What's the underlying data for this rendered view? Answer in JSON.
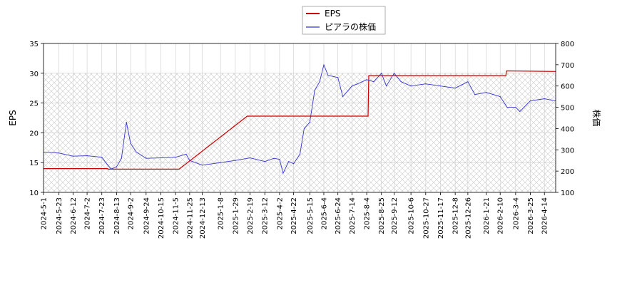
{
  "chart_data": {
    "type": "line",
    "legend": {
      "placement": "top-center",
      "entries": [
        {
          "label": "EPS",
          "color": "#cc0000"
        },
        {
          "label": "ピアラの株価",
          "color": "#3333cc"
        }
      ]
    },
    "ylabel_left": "EPS",
    "ylabel_right": "株価",
    "ylim_left": [
      10,
      35
    ],
    "ylim_right": [
      100,
      800
    ],
    "yticks_left": [
      "10",
      "15",
      "20",
      "25",
      "30",
      "35"
    ],
    "yticks_right": [
      "100",
      "200",
      "300",
      "400",
      "500",
      "600",
      "700",
      "800"
    ],
    "xrange": [
      "2024-05-01",
      "2026-04-30"
    ],
    "xticks": [
      "2024-5-1",
      "2024-5-23",
      "2024-6-12",
      "2024-7-2",
      "2024-7-23",
      "2024-8-13",
      "2024-9-2",
      "2024-9-24",
      "2024-10-15",
      "2024-11-5",
      "2024-11-25",
      "2024-12-13",
      "2025-1-8",
      "2025-1-29",
      "2025-2-19",
      "2025-3-12",
      "2025-4-2",
      "2025-4-22",
      "2025-5-15",
      "2025-6-4",
      "2025-6-24",
      "2025-7-14",
      "2025-8-4",
      "2025-8-25",
      "2025-9-12",
      "2025-10-6",
      "2025-10-27",
      "2025-11-17",
      "2025-12-8",
      "2025-12-26",
      "2026-1-21",
      "2026-2-10",
      "2026-3-4",
      "2026-3-25",
      "2026-4-14"
    ],
    "grid": true,
    "hatched_band": {
      "axis": "left",
      "from": 10,
      "to": 30
    },
    "series": [
      {
        "name": "EPS",
        "axis": "left",
        "color": "#cc0000",
        "x": [
          "2024-05-01",
          "2024-07-31",
          "2024-08-01",
          "2024-11-10",
          "2025-02-15",
          "2025-08-06",
          "2025-08-07",
          "2026-02-18",
          "2026-02-19",
          "2026-04-30"
        ],
        "values": [
          14.0,
          14.0,
          13.9,
          13.9,
          22.8,
          22.8,
          29.6,
          29.6,
          30.4,
          30.3
        ]
      },
      {
        "name": "ピアラの株価",
        "axis": "right",
        "color": "#3333cc",
        "x": [
          "2024-05-01",
          "2024-05-23",
          "2024-06-12",
          "2024-07-02",
          "2024-07-23",
          "2024-07-31",
          "2024-08-05",
          "2024-08-13",
          "2024-08-20",
          "2024-08-27",
          "2024-09-02",
          "2024-09-10",
          "2024-09-24",
          "2024-10-15",
          "2024-11-05",
          "2024-11-20",
          "2024-11-25",
          "2024-12-13",
          "2025-01-08",
          "2025-01-29",
          "2025-02-19",
          "2025-03-12",
          "2025-03-25",
          "2025-04-02",
          "2025-04-07",
          "2025-04-15",
          "2025-04-22",
          "2025-05-01",
          "2025-05-07",
          "2025-05-15",
          "2025-05-22",
          "2025-05-29",
          "2025-06-04",
          "2025-06-10",
          "2025-06-24",
          "2025-07-01",
          "2025-07-14",
          "2025-07-22",
          "2025-08-04",
          "2025-08-14",
          "2025-08-25",
          "2025-09-01",
          "2025-09-12",
          "2025-09-22",
          "2025-10-06",
          "2025-10-27",
          "2025-11-17",
          "2025-12-08",
          "2025-12-26",
          "2026-01-05",
          "2026-01-21",
          "2026-02-10",
          "2026-02-20",
          "2026-03-04",
          "2026-03-10",
          "2026-03-25",
          "2026-04-14",
          "2026-04-30"
        ],
        "values": [
          290,
          285,
          270,
          272,
          265,
          230,
          210,
          220,
          260,
          430,
          330,
          290,
          260,
          262,
          265,
          280,
          250,
          228,
          240,
          250,
          262,
          245,
          260,
          255,
          190,
          245,
          235,
          280,
          400,
          430,
          580,
          620,
          700,
          650,
          640,
          550,
          600,
          610,
          630,
          620,
          660,
          600,
          660,
          620,
          600,
          610,
          600,
          590,
          620,
          560,
          570,
          550,
          500,
          500,
          480,
          530,
          540,
          530
        ]
      }
    ]
  }
}
